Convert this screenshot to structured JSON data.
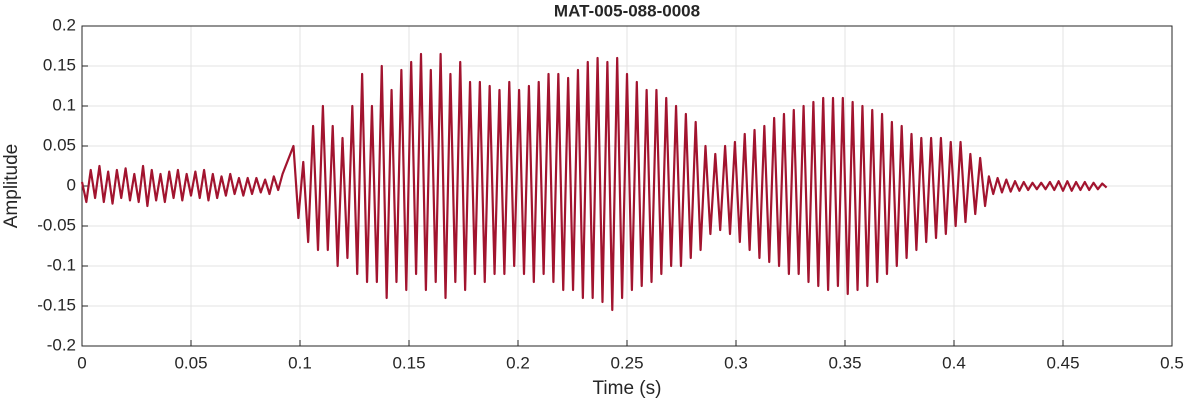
{
  "chart_data": {
    "type": "line",
    "title": "MAT-005-088-0008",
    "x_label": "Time (s)",
    "y_label": "Amplitude",
    "color": "#a2142f",
    "grid": true,
    "xlim": [
      0,
      0.5
    ],
    "xticks": [
      0,
      0.05,
      0.1,
      0.15,
      0.2,
      0.25,
      0.3,
      0.35,
      0.4,
      0.45,
      0.5
    ],
    "ylim": [
      -0.2,
      0.2
    ],
    "yticks": [
      -0.2,
      -0.15,
      -0.1,
      -0.05,
      0,
      0.05,
      0.1,
      0.15,
      0.2
    ],
    "x": [
      0,
      0.002,
      0.004,
      0.006,
      0.008,
      0.01,
      0.012,
      0.014,
      0.016,
      0.018,
      0.02,
      0.022,
      0.024,
      0.026,
      0.028,
      0.03,
      0.032,
      0.034,
      0.036,
      0.038,
      0.04,
      0.042,
      0.044,
      0.046,
      0.048,
      0.05,
      0.052,
      0.054,
      0.056,
      0.058,
      0.06,
      0.062,
      0.064,
      0.066,
      0.068,
      0.07,
      0.072,
      0.074,
      0.076,
      0.078,
      0.08,
      0.082,
      0.084,
      0.086,
      0.088,
      0.09,
      0.092,
      0.097,
      0.09925,
      0.1015,
      0.10375,
      0.106,
      0.10825,
      0.1105,
      0.11275,
      0.115,
      0.11725,
      0.1195,
      0.12175,
      0.124,
      0.12625,
      0.1285,
      0.13075,
      0.133,
      0.13525,
      0.1375,
      0.13975,
      0.142,
      0.14425,
      0.1465,
      0.14875,
      0.151,
      0.15325,
      0.1555,
      0.15775,
      0.16,
      0.16225,
      0.1645,
      0.16675,
      0.169,
      0.17125,
      0.1735,
      0.17575,
      0.178,
      0.18025,
      0.1825,
      0.18475,
      0.187,
      0.18925,
      0.1915,
      0.19375,
      0.196,
      0.19825,
      0.2005,
      0.20275,
      0.205,
      0.20725,
      0.2095,
      0.21175,
      0.214,
      0.21625,
      0.2185,
      0.22075,
      0.223,
      0.22525,
      0.2275,
      0.22975,
      0.232,
      0.23425,
      0.2365,
      0.23875,
      0.241,
      0.24325,
      0.2455,
      0.24775,
      0.25,
      0.25225,
      0.2545,
      0.25675,
      0.259,
      0.26125,
      0.2635,
      0.26575,
      0.268,
      0.27025,
      0.2725,
      0.27475,
      0.277,
      0.27925,
      0.2815,
      0.28375,
      0.286,
      0.28825,
      0.2905,
      0.29275,
      0.295,
      0.29725,
      0.2995,
      0.30175,
      0.304,
      0.30625,
      0.3085,
      0.31075,
      0.313,
      0.31525,
      0.3175,
      0.31975,
      0.322,
      0.32425,
      0.3265,
      0.32875,
      0.331,
      0.33325,
      0.3355,
      0.33775,
      0.34,
      0.34225,
      0.3445,
      0.34675,
      0.349,
      0.35125,
      0.3535,
      0.35575,
      0.358,
      0.36025,
      0.3625,
      0.36475,
      0.367,
      0.36925,
      0.3715,
      0.37375,
      0.376,
      0.37825,
      0.3805,
      0.38275,
      0.385,
      0.38725,
      0.3895,
      0.39175,
      0.394,
      0.39625,
      0.3985,
      0.40075,
      0.403,
      0.40525,
      0.4075,
      0.40975,
      0.412,
      0.41425,
      0.416,
      0.418,
      0.42,
      0.422,
      0.424,
      0.426,
      0.428,
      0.43,
      0.432,
      0.434,
      0.436,
      0.438,
      0.44,
      0.442,
      0.444,
      0.446,
      0.448,
      0.45,
      0.452,
      0.454,
      0.456,
      0.458,
      0.46,
      0.462,
      0.464,
      0.466,
      0.468,
      0.47
    ],
    "values": [
      0.005,
      -0.02,
      0.02,
      -0.015,
      0.025,
      -0.02,
      0.018,
      -0.022,
      0.02,
      -0.015,
      0.022,
      -0.018,
      0.015,
      -0.02,
      0.025,
      -0.025,
      0.02,
      -0.018,
      0.015,
      -0.02,
      0.018,
      -0.015,
      0.02,
      -0.018,
      0.015,
      -0.012,
      0.018,
      -0.015,
      0.02,
      -0.018,
      0.015,
      -0.015,
      0.012,
      -0.012,
      0.015,
      -0.01,
      0.01,
      -0.012,
      0.01,
      -0.01,
      0.01,
      -0.008,
      0.008,
      -0.01,
      0.012,
      -0.005,
      0.015,
      0.05,
      -0.04,
      0.03,
      -0.07,
      0.075,
      -0.08,
      0.1,
      -0.08,
      0.075,
      -0.1,
      0.06,
      -0.09,
      0.1,
      -0.11,
      0.14,
      -0.12,
      0.1,
      -0.12,
      0.15,
      -0.14,
      0.12,
      -0.12,
      0.145,
      -0.13,
      0.155,
      -0.11,
      0.165,
      -0.13,
      0.145,
      -0.12,
      0.165,
      -0.14,
      0.14,
      -0.12,
      0.155,
      -0.13,
      0.13,
      -0.11,
      0.13,
      -0.12,
      0.125,
      -0.11,
      0.12,
      -0.11,
      0.13,
      -0.1,
      0.12,
      -0.11,
      0.125,
      -0.12,
      0.13,
      -0.11,
      0.14,
      -0.12,
      0.14,
      -0.13,
      0.135,
      -0.13,
      0.145,
      -0.14,
      0.155,
      -0.14,
      0.16,
      -0.145,
      0.155,
      -0.155,
      0.16,
      -0.14,
      0.14,
      -0.13,
      0.13,
      -0.125,
      0.12,
      -0.12,
      0.12,
      -0.11,
      0.11,
      -0.1,
      0.1,
      -0.1,
      0.09,
      -0.09,
      0.08,
      -0.08,
      0.05,
      -0.06,
      0.04,
      -0.055,
      0.05,
      -0.06,
      0.055,
      -0.07,
      0.065,
      -0.08,
      0.07,
      -0.09,
      0.075,
      -0.095,
      0.085,
      -0.1,
      0.09,
      -0.11,
      0.095,
      -0.11,
      0.1,
      -0.12,
      0.105,
      -0.125,
      0.11,
      -0.13,
      0.11,
      -0.125,
      0.11,
      -0.135,
      0.105,
      -0.13,
      0.1,
      -0.125,
      0.095,
      -0.12,
      0.09,
      -0.11,
      0.08,
      -0.1,
      0.075,
      -0.09,
      0.065,
      -0.08,
      0.06,
      -0.07,
      0.06,
      -0.065,
      0.06,
      -0.06,
      0.055,
      -0.05,
      0.055,
      -0.045,
      0.04,
      -0.035,
      0.035,
      -0.025,
      0.012,
      -0.01,
      0.01,
      -0.008,
      0.008,
      -0.007,
      0.006,
      -0.006,
      0.005,
      -0.005,
      0.004,
      -0.004,
      0.004,
      -0.004,
      0.005,
      -0.005,
      0.006,
      -0.006,
      0.006,
      -0.006,
      0.005,
      -0.005,
      0.005,
      -0.005,
      0.004,
      -0.004,
      0.003,
      -0.002
    ]
  }
}
